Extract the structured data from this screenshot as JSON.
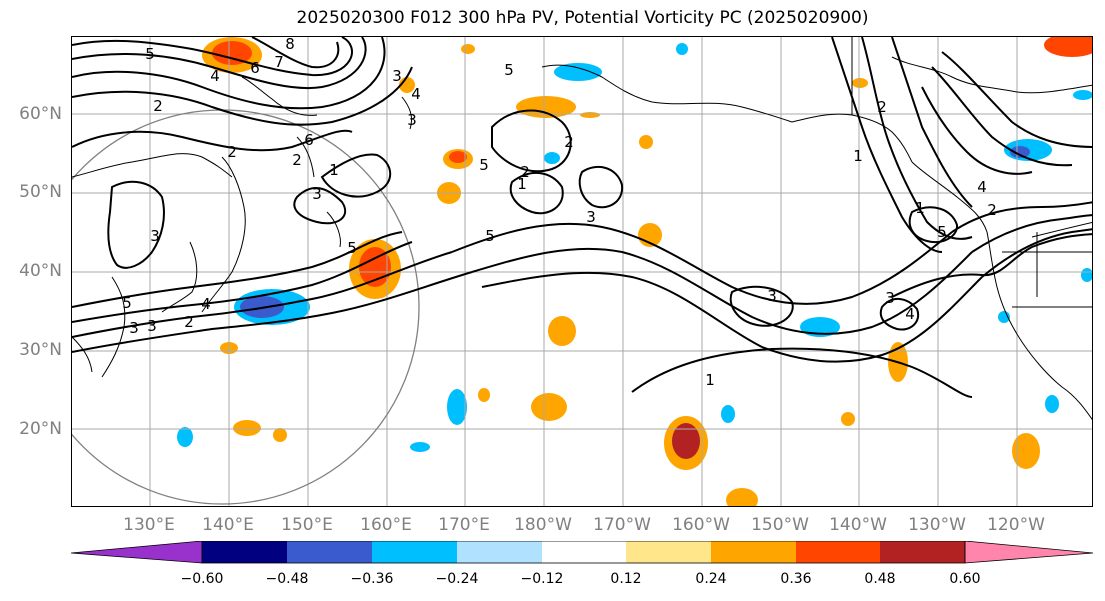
{
  "title": "2025020300 F012 300 hPa PV, Potential Vorticity PC (2025020900)",
  "lat_labels": [
    "60°N",
    "50°N",
    "40°N",
    "30°N",
    "20°N"
  ],
  "lon_labels": [
    "130°E",
    "140°E",
    "150°E",
    "160°E",
    "170°E",
    "180°W",
    "170°W",
    "160°W",
    "150°W",
    "140°W",
    "130°W",
    "120°W"
  ],
  "contour_labels": [
    "5",
    "8",
    "7",
    "6",
    "4",
    "3",
    "2",
    "2",
    "3",
    "1",
    "2",
    "3",
    "5",
    "5",
    "6",
    "5",
    "3",
    "4",
    "2",
    "3",
    "5",
    "4",
    "3",
    "2",
    "1",
    "5",
    "2",
    "3",
    "2",
    "1",
    "3",
    "3",
    "1",
    "2",
    "1",
    "5",
    "4",
    "4"
  ],
  "colorbar": {
    "ticks": [
      "−0.60",
      "−0.48",
      "−0.36",
      "−0.24",
      "−0.12",
      "0.12",
      "0.24",
      "0.36",
      "0.48",
      "0.60"
    ],
    "colors": [
      "#9932cc",
      "#000080",
      "#3a5bcd",
      "#00bfff",
      "#b0e2ff",
      "#ffffff",
      "#ffe68a",
      "#ffa500",
      "#ff4500",
      "#b22222",
      "#ff85ad"
    ]
  },
  "map_meta": {
    "projection": "lat-lon",
    "lon_range": [
      "120°E",
      "115°W"
    ],
    "lat_range": [
      "10°N",
      "70°N"
    ],
    "grid": true,
    "field": "300 hPa PV contours with Potential Vorticity PC shading"
  }
}
